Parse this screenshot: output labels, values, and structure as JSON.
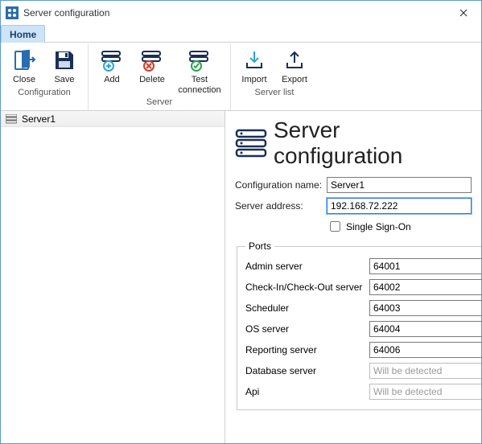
{
  "window": {
    "title": "Server configuration"
  },
  "tabs": {
    "home": "Home"
  },
  "ribbon": {
    "configuration": {
      "label": "Configuration",
      "close": "Close",
      "save": "Save"
    },
    "server": {
      "label": "Server",
      "add": "Add",
      "delete": "Delete",
      "test": "Test\nconnection"
    },
    "serverlist": {
      "label": "Server list",
      "import": "Import",
      "export": "Export"
    }
  },
  "sidebar": {
    "items": [
      {
        "label": "Server1"
      }
    ]
  },
  "content": {
    "heading": "Server configuration",
    "config_name_label": "Configuration name:",
    "config_name_value": "Server1",
    "server_addr_label": "Server address:",
    "server_addr_value": "192.168.72.222",
    "sso_label": "Single Sign-On",
    "sso_checked": false,
    "ports_legend": "Ports",
    "ports": [
      {
        "label": "Admin server",
        "value": "64001",
        "type": "spin"
      },
      {
        "label": "Check-In/Check-Out server",
        "value": "64002",
        "type": "spin"
      },
      {
        "label": "Scheduler",
        "value": "64003",
        "type": "spin"
      },
      {
        "label": "OS server",
        "value": "64004",
        "type": "spin"
      },
      {
        "label": "Reporting server",
        "value": "64006",
        "type": "spin"
      },
      {
        "label": "Database server",
        "value": "Will be detected",
        "type": "readonly"
      },
      {
        "label": "Api",
        "value": "Will be detected",
        "type": "readonly"
      }
    ]
  },
  "colors": {
    "accent": "#2b6cb0",
    "border": "#7a7a7a",
    "tab_bg": "#cde3f8"
  }
}
